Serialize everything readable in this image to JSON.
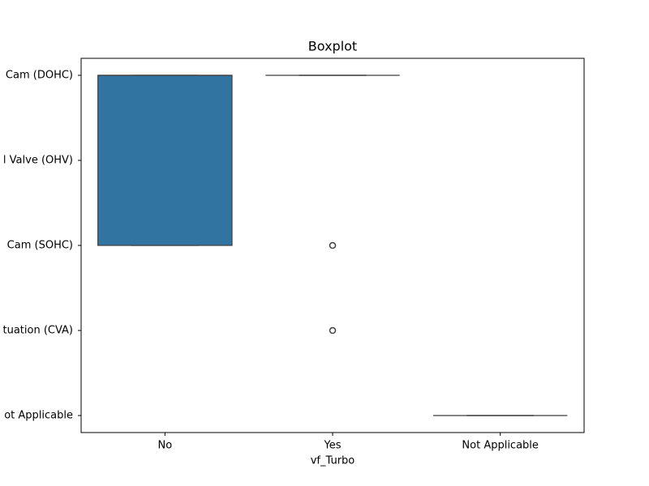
{
  "chart_data": {
    "type": "box",
    "title": "Boxplot",
    "xlabel": "vf_Turbo",
    "categories": [
      "No",
      "Yes",
      "Not Applicable"
    ],
    "ylim": [
      4.2,
      -0.2
    ],
    "yticks": [
      {
        "value": 0,
        "label": "Cam (DOHC)"
      },
      {
        "value": 1,
        "label": "l Valve (OHV)"
      },
      {
        "value": 2,
        "label": "Cam (SOHC)"
      },
      {
        "value": 3,
        "label": "tuation (CVA)"
      },
      {
        "value": 4,
        "label": "ot Applicable"
      }
    ],
    "color": "#3274a1",
    "boxes": [
      {
        "min": 0,
        "q1": 0,
        "median": 0,
        "q3": 2,
        "max": 2,
        "outliers": []
      },
      {
        "min": 0,
        "q1": 0,
        "median": 0,
        "q3": 0,
        "max": 0,
        "outliers": [
          2,
          3
        ]
      },
      {
        "min": 4,
        "q1": 4,
        "median": 4,
        "q3": 4,
        "max": 4,
        "outliers": []
      }
    ]
  }
}
